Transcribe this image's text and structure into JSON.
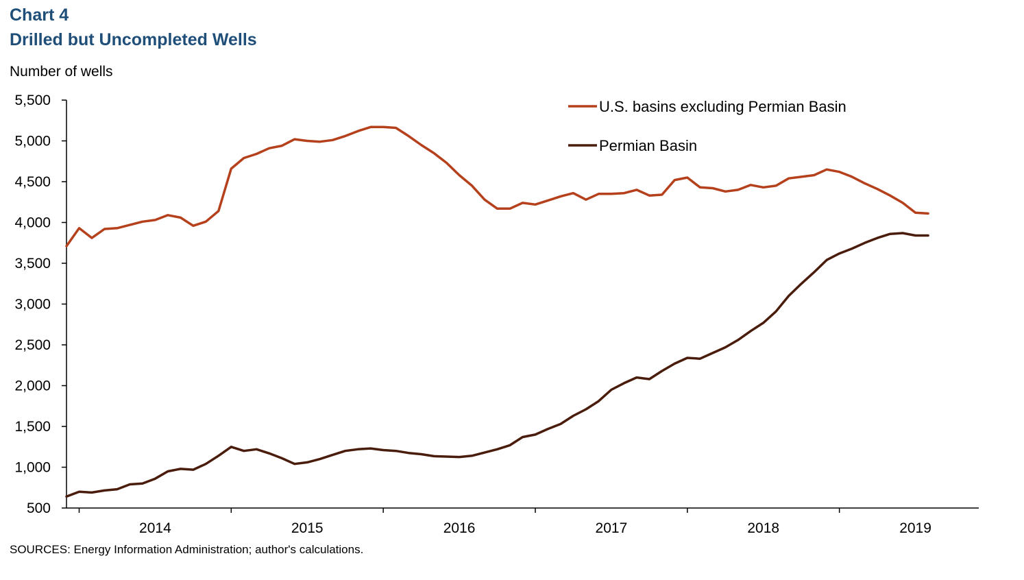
{
  "header": {
    "chart_number": "Chart 4",
    "title": "Drilled but Uncompleted Wells",
    "y_unit_label": "Number of wells"
  },
  "footer": {
    "sources": "SOURCES: Energy Information Administration; author's calculations."
  },
  "colors": {
    "us_ex_permian": "#b5401c",
    "permian": "#4a1c0c",
    "title": "#1f4e79"
  },
  "chart_data": {
    "type": "line",
    "title": "Drilled but Uncompleted Wells",
    "ylabel": "Number of wells",
    "xlabel": "",
    "ylim": [
      500,
      5500
    ],
    "yticks": [
      500,
      1000,
      1500,
      2000,
      2500,
      3000,
      3500,
      4000,
      4500,
      5000,
      5500
    ],
    "ytick_labels": [
      "500",
      "1,000",
      "1,500",
      "2,000",
      "2,500",
      "3,000",
      "3,500",
      "4,000",
      "4,500",
      "5,000",
      "5,500"
    ],
    "xtick_labels": [
      "2014",
      "2015",
      "2016",
      "2017",
      "2018",
      "2019"
    ],
    "x_start": "2013-12",
    "x_end": "2019-12",
    "grid": false,
    "legend_position": "top-right",
    "series": [
      {
        "name": "U.S. basins excluding Permian Basin",
        "color": "#b5401c",
        "dates": [
          "2013-12",
          "2014-01",
          "2014-02",
          "2014-03",
          "2014-04",
          "2014-05",
          "2014-06",
          "2014-07",
          "2014-08",
          "2014-09",
          "2014-10",
          "2014-11",
          "2014-12",
          "2015-01",
          "2015-02",
          "2015-03",
          "2015-04",
          "2015-05",
          "2015-06",
          "2015-07",
          "2015-08",
          "2015-09",
          "2015-10",
          "2015-11",
          "2015-12",
          "2016-01",
          "2016-02",
          "2016-03",
          "2016-04",
          "2016-05",
          "2016-06",
          "2016-07",
          "2016-08",
          "2016-09",
          "2016-10",
          "2016-11",
          "2016-12",
          "2017-01",
          "2017-02",
          "2017-03",
          "2017-04",
          "2017-05",
          "2017-06",
          "2017-07",
          "2017-08",
          "2017-09",
          "2017-10",
          "2017-11",
          "2017-12",
          "2018-01",
          "2018-02",
          "2018-03",
          "2018-04",
          "2018-05",
          "2018-06",
          "2018-07",
          "2018-08",
          "2018-09",
          "2018-10",
          "2018-11",
          "2018-12",
          "2019-01",
          "2019-02",
          "2019-03",
          "2019-04",
          "2019-05",
          "2019-06",
          "2019-07",
          "2019-08"
        ],
        "values": [
          3710,
          3930,
          3810,
          3920,
          3930,
          3970,
          4010,
          4030,
          4090,
          4060,
          3960,
          4010,
          4140,
          4660,
          4790,
          4840,
          4910,
          4940,
          5020,
          5000,
          4990,
          5010,
          5060,
          5120,
          5170,
          5170,
          5160,
          5060,
          4950,
          4850,
          4730,
          4580,
          4450,
          4280,
          4170,
          4170,
          4240,
          4220,
          4270,
          4320,
          4360,
          4280,
          4350,
          4350,
          4360,
          4400,
          4330,
          4340,
          4520,
          4550,
          4430,
          4420,
          4380,
          4400,
          4460,
          4430,
          4450,
          4540,
          4560,
          4580,
          4650,
          4620,
          4560,
          4480,
          4410,
          4330,
          4240,
          4120,
          4110
        ]
      },
      {
        "name": "Permian Basin",
        "color": "#4a1c0c",
        "dates": [
          "2013-12",
          "2014-01",
          "2014-02",
          "2014-03",
          "2014-04",
          "2014-05",
          "2014-06",
          "2014-07",
          "2014-08",
          "2014-09",
          "2014-10",
          "2014-11",
          "2014-12",
          "2015-01",
          "2015-02",
          "2015-03",
          "2015-04",
          "2015-05",
          "2015-06",
          "2015-07",
          "2015-08",
          "2015-09",
          "2015-10",
          "2015-11",
          "2015-12",
          "2016-01",
          "2016-02",
          "2016-03",
          "2016-04",
          "2016-05",
          "2016-06",
          "2016-07",
          "2016-08",
          "2016-09",
          "2016-10",
          "2016-11",
          "2016-12",
          "2017-01",
          "2017-02",
          "2017-03",
          "2017-04",
          "2017-05",
          "2017-06",
          "2017-07",
          "2017-08",
          "2017-09",
          "2017-10",
          "2017-11",
          "2017-12",
          "2018-01",
          "2018-02",
          "2018-03",
          "2018-04",
          "2018-05",
          "2018-06",
          "2018-07",
          "2018-08",
          "2018-09",
          "2018-10",
          "2018-11",
          "2018-12",
          "2019-01",
          "2019-02",
          "2019-03",
          "2019-04",
          "2019-05",
          "2019-06",
          "2019-07",
          "2019-08"
        ],
        "values": [
          640,
          700,
          690,
          715,
          730,
          790,
          800,
          860,
          950,
          980,
          970,
          1040,
          1140,
          1250,
          1200,
          1220,
          1170,
          1110,
          1040,
          1060,
          1100,
          1150,
          1200,
          1220,
          1230,
          1210,
          1200,
          1175,
          1160,
          1135,
          1130,
          1125,
          1140,
          1180,
          1220,
          1270,
          1370,
          1400,
          1470,
          1530,
          1630,
          1710,
          1810,
          1950,
          2030,
          2100,
          2080,
          2180,
          2270,
          2340,
          2330,
          2400,
          2470,
          2560,
          2670,
          2770,
          2910,
          3100,
          3250,
          3390,
          3540,
          3620,
          3680,
          3750,
          3810,
          3860,
          3870,
          3840,
          3840
        ]
      }
    ]
  }
}
